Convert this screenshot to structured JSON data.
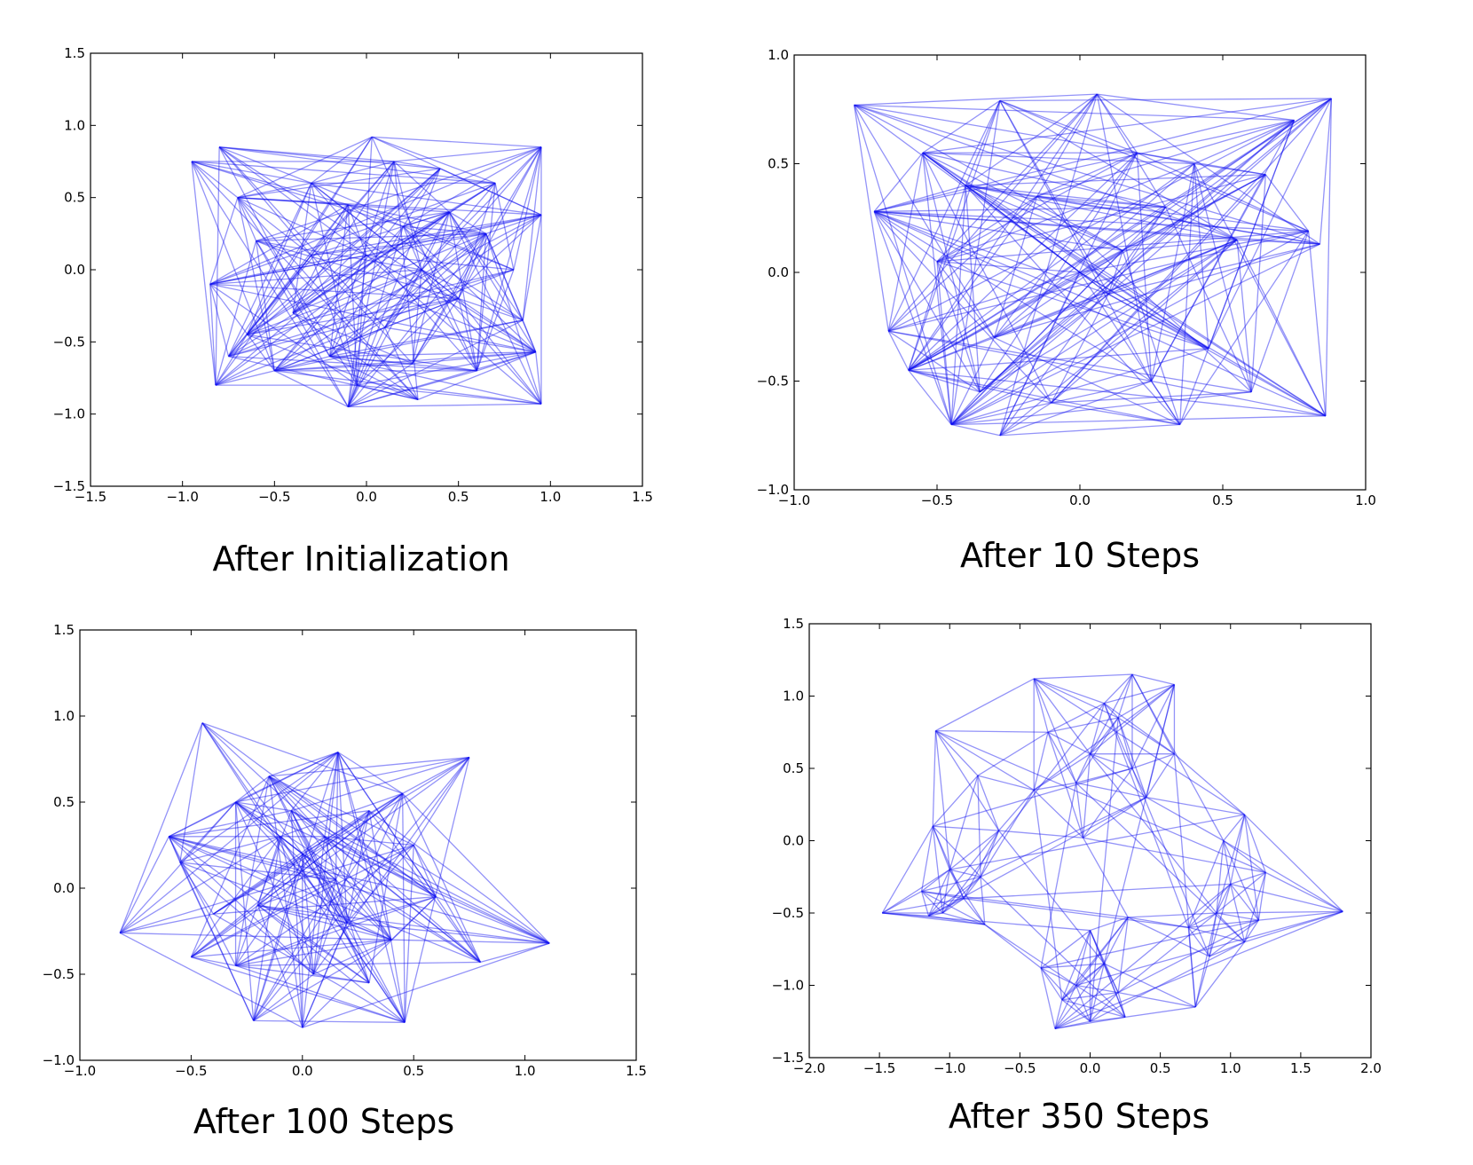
{
  "figure": {
    "background": "#ffffff",
    "edge_color": "#0000ff"
  },
  "chart_data": [
    {
      "type": "scatter",
      "title": "After Initialization",
      "xlim": [
        -1.5,
        1.5
      ],
      "ylim": [
        -1.5,
        1.5
      ],
      "xticks": [
        "-1.5",
        "-1.0",
        "-0.5",
        "0.0",
        "0.5",
        "1.0",
        "1.5"
      ],
      "yticks": [
        "-1.5",
        "-1.0",
        "-0.5",
        "0.0",
        "0.5",
        "1.0",
        "1.5"
      ],
      "grid": false,
      "points": [
        {
          "x": -0.95,
          "y": 0.75
        },
        {
          "x": 0.95,
          "y": 0.85
        },
        {
          "x": -0.82,
          "y": -0.8
        },
        {
          "x": 0.95,
          "y": -0.93
        },
        {
          "x": 0.03,
          "y": 0.92
        },
        {
          "x": -0.1,
          "y": -0.95
        },
        {
          "x": 0.28,
          "y": -0.9
        },
        {
          "x": -0.85,
          "y": -0.1
        },
        {
          "x": 0.95,
          "y": 0.38
        },
        {
          "x": 0.92,
          "y": -0.57
        },
        {
          "x": -0.3,
          "y": 0.6
        },
        {
          "x": 0.2,
          "y": 0.3
        },
        {
          "x": -0.4,
          "y": -0.3
        },
        {
          "x": 0.5,
          "y": -0.2
        },
        {
          "x": 0.0,
          "y": 0.1
        },
        {
          "x": -0.6,
          "y": 0.2
        },
        {
          "x": 0.7,
          "y": 0.6
        },
        {
          "x": -0.2,
          "y": -0.6
        },
        {
          "x": 0.4,
          "y": 0.7
        },
        {
          "x": 0.6,
          "y": -0.7
        },
        {
          "x": -0.7,
          "y": 0.5
        },
        {
          "x": -0.5,
          "y": -0.7
        },
        {
          "x": 0.8,
          "y": 0.0
        },
        {
          "x": 0.1,
          "y": -0.4
        },
        {
          "x": -0.8,
          "y": 0.85
        },
        {
          "x": 0.3,
          "y": 0.0
        },
        {
          "x": -0.1,
          "y": 0.45
        },
        {
          "x": 0.85,
          "y": -0.35
        },
        {
          "x": -0.65,
          "y": -0.45
        },
        {
          "x": 0.45,
          "y": 0.4
        },
        {
          "x": -0.3,
          "y": 0.1
        },
        {
          "x": 0.15,
          "y": 0.75
        },
        {
          "x": -0.05,
          "y": -0.8
        },
        {
          "x": 0.65,
          "y": 0.25
        },
        {
          "x": -0.75,
          "y": -0.6
        },
        {
          "x": 0.25,
          "y": -0.65
        }
      ]
    },
    {
      "type": "scatter",
      "title": "After 10 Steps",
      "xlim": [
        -1.0,
        1.0
      ],
      "ylim": [
        -1.0,
        1.0
      ],
      "xticks": [
        "-1.0",
        "-0.5",
        "0.0",
        "0.5",
        "1.0"
      ],
      "yticks": [
        "-1.0",
        "-0.5",
        "0.0",
        "0.5",
        "1.0"
      ],
      "grid": false,
      "points": [
        {
          "x": -0.79,
          "y": 0.77
        },
        {
          "x": 0.88,
          "y": 0.8
        },
        {
          "x": 0.06,
          "y": 0.82
        },
        {
          "x": -0.28,
          "y": 0.79
        },
        {
          "x": 0.75,
          "y": 0.7
        },
        {
          "x": -0.72,
          "y": 0.28
        },
        {
          "x": -0.67,
          "y": -0.27
        },
        {
          "x": 0.86,
          "y": -0.66
        },
        {
          "x": -0.28,
          "y": -0.75
        },
        {
          "x": -0.45,
          "y": -0.7
        },
        {
          "x": 0.35,
          "y": -0.7
        },
        {
          "x": 0.84,
          "y": 0.13
        },
        {
          "x": 0.8,
          "y": 0.19
        },
        {
          "x": -0.55,
          "y": 0.55
        },
        {
          "x": 0.0,
          "y": 0.0
        },
        {
          "x": 0.3,
          "y": 0.3
        },
        {
          "x": -0.3,
          "y": -0.3
        },
        {
          "x": 0.1,
          "y": -0.1
        },
        {
          "x": -0.15,
          "y": 0.35
        },
        {
          "x": 0.45,
          "y": -0.35
        },
        {
          "x": -0.5,
          "y": 0.05
        },
        {
          "x": 0.55,
          "y": 0.15
        },
        {
          "x": 0.2,
          "y": 0.55
        },
        {
          "x": -0.35,
          "y": -0.55
        },
        {
          "x": 0.6,
          "y": -0.55
        },
        {
          "x": -0.6,
          "y": -0.45
        },
        {
          "x": 0.65,
          "y": 0.45
        },
        {
          "x": -0.1,
          "y": -0.6
        },
        {
          "x": 0.25,
          "y": -0.5
        },
        {
          "x": -0.4,
          "y": 0.4
        },
        {
          "x": 0.4,
          "y": 0.5
        },
        {
          "x": 0.15,
          "y": 0.1
        }
      ]
    },
    {
      "type": "scatter",
      "title": "After 100 Steps",
      "xlim": [
        -1.0,
        1.5
      ],
      "ylim": [
        -1.0,
        1.5
      ],
      "xticks": [
        "-1.0",
        "-0.5",
        "0.0",
        "0.5",
        "1.0",
        "1.5"
      ],
      "yticks": [
        "-1.0",
        "-0.5",
        "0.0",
        "0.5",
        "1.0",
        "1.5"
      ],
      "grid": false,
      "points": [
        {
          "x": -0.45,
          "y": 0.96
        },
        {
          "x": -0.82,
          "y": -0.26
        },
        {
          "x": 0.75,
          "y": 0.76
        },
        {
          "x": 1.11,
          "y": -0.32
        },
        {
          "x": -0.22,
          "y": -0.77
        },
        {
          "x": 0.0,
          "y": -0.81
        },
        {
          "x": 0.46,
          "y": -0.78
        },
        {
          "x": 0.16,
          "y": 0.79
        },
        {
          "x": -0.5,
          "y": -0.4
        },
        {
          "x": 0.8,
          "y": -0.43
        },
        {
          "x": -0.1,
          "y": 0.3
        },
        {
          "x": 0.1,
          "y": 0.3
        },
        {
          "x": 0.0,
          "y": 0.2
        },
        {
          "x": -0.3,
          "y": 0.5
        },
        {
          "x": 0.3,
          "y": 0.45
        },
        {
          "x": 0.5,
          "y": 0.25
        },
        {
          "x": -0.55,
          "y": 0.15
        },
        {
          "x": 0.2,
          "y": -0.2
        },
        {
          "x": -0.2,
          "y": -0.1
        },
        {
          "x": 0.4,
          "y": -0.3
        },
        {
          "x": -0.4,
          "y": -0.15
        },
        {
          "x": 0.6,
          "y": -0.05
        },
        {
          "x": 0.05,
          "y": -0.5
        },
        {
          "x": -0.3,
          "y": -0.45
        },
        {
          "x": 0.3,
          "y": -0.55
        },
        {
          "x": -0.6,
          "y": 0.3
        },
        {
          "x": 0.45,
          "y": 0.55
        },
        {
          "x": -0.15,
          "y": 0.65
        },
        {
          "x": 0.15,
          "y": 0.05
        },
        {
          "x": -0.05,
          "y": 0.45
        }
      ]
    },
    {
      "type": "scatter",
      "title": "After 350 Steps",
      "xlim": [
        -2.0,
        2.0
      ],
      "ylim": [
        -1.5,
        1.5
      ],
      "xticks": [
        "-2.0",
        "-1.5",
        "-1.0",
        "-0.5",
        "0.0",
        "0.5",
        "1.0",
        "1.5",
        "2.0"
      ],
      "yticks": [
        "-1.5",
        "-1.0",
        "-0.5",
        "0.0",
        "0.5",
        "1.0",
        "1.5"
      ],
      "grid": false,
      "points": [
        {
          "x": -1.48,
          "y": -0.5
        },
        {
          "x": -1.1,
          "y": 0.76
        },
        {
          "x": -1.12,
          "y": 0.1
        },
        {
          "x": -1.05,
          "y": -0.5
        },
        {
          "x": -0.9,
          "y": -0.4
        },
        {
          "x": -0.78,
          "y": -0.25
        },
        {
          "x": -1.2,
          "y": -0.35
        },
        {
          "x": -0.75,
          "y": -0.58
        },
        {
          "x": -1.0,
          "y": -0.2
        },
        {
          "x": -1.15,
          "y": -0.52
        },
        {
          "x": -0.4,
          "y": 1.12
        },
        {
          "x": 0.3,
          "y": 1.15
        },
        {
          "x": 0.6,
          "y": 1.08
        },
        {
          "x": -0.8,
          "y": 0.45
        },
        {
          "x": -0.65,
          "y": 0.07
        },
        {
          "x": 0.0,
          "y": 0.6
        },
        {
          "x": -0.3,
          "y": 0.75
        },
        {
          "x": 0.3,
          "y": 0.5
        },
        {
          "x": -0.1,
          "y": 0.4
        },
        {
          "x": 0.2,
          "y": 0.85
        },
        {
          "x": 0.4,
          "y": 0.3
        },
        {
          "x": -0.4,
          "y": 0.35
        },
        {
          "x": 0.6,
          "y": 0.6
        },
        {
          "x": -0.05,
          "y": 0.02
        },
        {
          "x": 0.1,
          "y": 0.95
        },
        {
          "x": 1.8,
          "y": -0.49
        },
        {
          "x": 1.25,
          "y": -0.22
        },
        {
          "x": 1.1,
          "y": 0.18
        },
        {
          "x": 0.9,
          "y": -0.5
        },
        {
          "x": 0.75,
          "y": -1.15
        },
        {
          "x": 0.85,
          "y": -0.8
        },
        {
          "x": 1.0,
          "y": -0.3
        },
        {
          "x": 1.2,
          "y": -0.55
        },
        {
          "x": 0.7,
          "y": -0.6
        },
        {
          "x": 0.95,
          "y": 0.0
        },
        {
          "x": 1.1,
          "y": -0.7
        },
        {
          "x": -0.25,
          "y": -1.3
        },
        {
          "x": -0.35,
          "y": -0.88
        },
        {
          "x": 0.25,
          "y": -1.22
        },
        {
          "x": 0.0,
          "y": -0.62
        },
        {
          "x": -0.1,
          "y": -1.0
        },
        {
          "x": 0.1,
          "y": -0.85
        },
        {
          "x": -0.2,
          "y": -1.1
        },
        {
          "x": 0.2,
          "y": -1.05
        },
        {
          "x": 0.0,
          "y": -1.25
        },
        {
          "x": 0.27,
          "y": -0.53
        }
      ]
    }
  ]
}
